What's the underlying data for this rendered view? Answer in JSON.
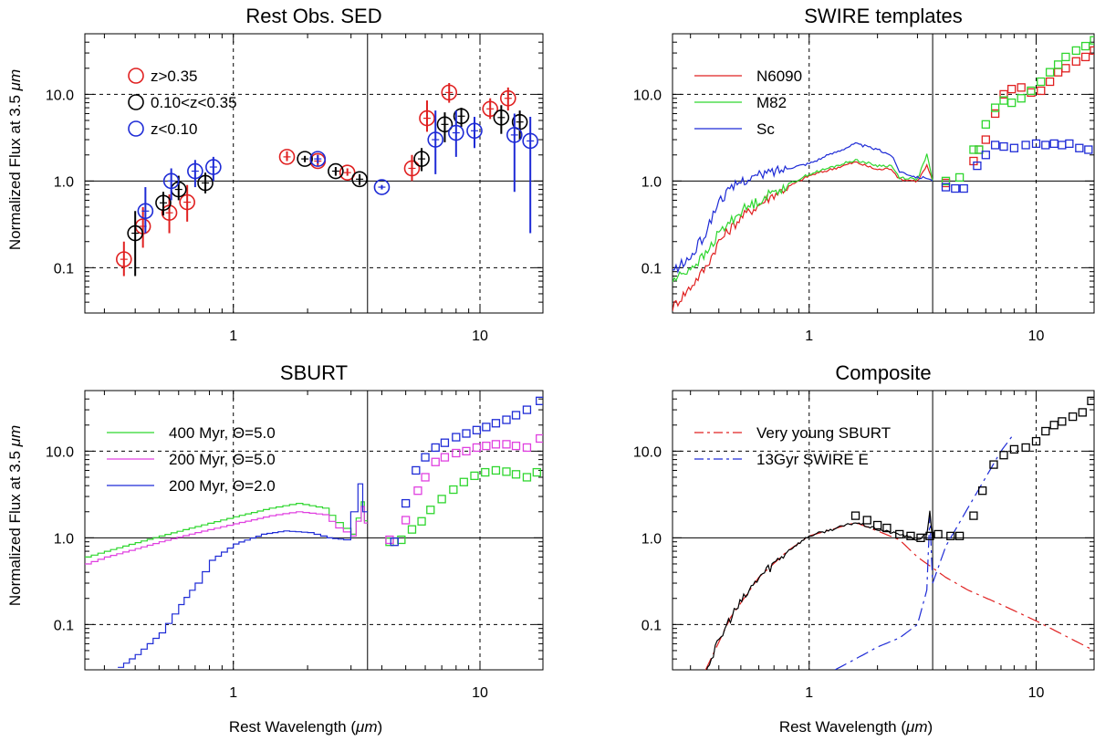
{
  "figure": {
    "ylabel_prefix": "Normalized Flux at 3.5 ",
    "ylabel_unit": "μm",
    "xlabel_prefix": "Rest Wavelength (",
    "xlabel_unit": "μm",
    "xlabel_suffix": ")"
  },
  "chart_data": [
    {
      "id": "rest-obs-sed",
      "type": "scatter",
      "title": "Rest Obs. SED",
      "xscale": "log",
      "yscale": "log",
      "xlim": [
        0.25,
        18
      ],
      "ylim": [
        0.03,
        50
      ],
      "xticks": [
        1,
        10
      ],
      "xtick_labels": [
        "1",
        "10"
      ],
      "yticks": [
        0.1,
        1,
        10
      ],
      "ytick_labels": [
        "0.1",
        "1.0",
        "10.0"
      ],
      "show_x_ticklabels": true,
      "show_y_ticklabels": true,
      "vlines_solid": [
        3.5
      ],
      "vlines_dashed": [
        1,
        10
      ],
      "hlines_solid": [
        1
      ],
      "hlines_dashed": [
        0.1,
        10
      ],
      "legend_position": "top-left",
      "series": [
        {
          "name": "z>0.35",
          "color": "#e02020",
          "marker": "circle",
          "x": [
            0.36,
            0.43,
            0.55,
            0.65,
            1.65,
            2.2,
            2.9,
            5.3,
            6.1,
            7.5,
            11.0,
            13.0
          ],
          "y": [
            0.125,
            0.3,
            0.43,
            0.57,
            1.9,
            1.7,
            1.25,
            1.4,
            5.3,
            10.5,
            6.8,
            9.0
          ],
          "err_lo": [
            0.08,
            0.17,
            0.25,
            0.34,
            1.7,
            1.5,
            1.15,
            1.0,
            3.7,
            8.0,
            5.2,
            6.5
          ],
          "err_hi": [
            0.2,
            0.5,
            0.7,
            0.9,
            2.2,
            2.0,
            1.4,
            2.0,
            8.5,
            13.5,
            9.0,
            12.0
          ]
        },
        {
          "name": "0.10<z<0.35",
          "color": "#000000",
          "marker": "circle",
          "x": [
            0.4,
            0.52,
            0.6,
            0.77,
            1.95,
            2.6,
            3.25,
            5.8,
            7.2,
            8.4,
            12.2,
            14.5
          ],
          "y": [
            0.25,
            0.56,
            0.8,
            0.95,
            1.8,
            1.3,
            1.05,
            1.8,
            4.5,
            5.6,
            5.4,
            4.8
          ],
          "err_lo": [
            0.08,
            0.4,
            0.6,
            0.72,
            1.65,
            1.15,
            0.9,
            1.3,
            2.8,
            4.2,
            3.5,
            3.0
          ],
          "err_hi": [
            0.45,
            0.75,
            1.15,
            1.25,
            1.95,
            1.45,
            1.2,
            2.4,
            6.2,
            7.0,
            7.5,
            6.5
          ],
          "markers_with_cross": true
        },
        {
          "name": "z<0.10",
          "color": "#1e2bd6",
          "marker": "circle",
          "x": [
            0.44,
            0.56,
            0.7,
            0.83,
            2.2,
            4.0,
            6.6,
            8.0,
            9.5,
            13.8,
            16.0
          ],
          "y": [
            0.45,
            1.0,
            1.3,
            1.45,
            1.8,
            0.85,
            3.0,
            3.6,
            3.8,
            3.4,
            2.9
          ],
          "err_lo": [
            0.25,
            0.6,
            0.85,
            1.0,
            1.6,
            0.8,
            1.2,
            1.9,
            2.4,
            0.75,
            0.25
          ],
          "err_hi": [
            0.85,
            1.4,
            1.75,
            1.9,
            2.0,
            0.9,
            6.5,
            6.5,
            5.5,
            6.0,
            5.5
          ]
        }
      ]
    },
    {
      "id": "swire-templates",
      "type": "line",
      "title": "SWIRE templates",
      "xscale": "log",
      "yscale": "log",
      "xlim": [
        0.25,
        18
      ],
      "ylim": [
        0.03,
        50
      ],
      "xticks": [
        1,
        10
      ],
      "xtick_labels": [
        "1",
        "10"
      ],
      "yticks": [
        0.1,
        1,
        10
      ],
      "ytick_labels": [
        "0.1",
        "1.0",
        "10.0"
      ],
      "show_x_ticklabels": true,
      "show_y_ticklabels": true,
      "vlines_solid": [
        3.5
      ],
      "vlines_dashed": [
        1,
        10
      ],
      "hlines_solid": [
        1
      ],
      "hlines_dashed": [
        0.1,
        10
      ],
      "legend_position": "top-left",
      "series": [
        {
          "name": "N6090",
          "color": "#e02020",
          "style": "solid",
          "line_x": [
            0.25,
            0.3,
            0.35,
            0.4,
            0.5,
            0.7,
            1.0,
            1.6,
            2.0,
            2.3,
            2.5,
            3.0,
            3.3,
            3.5
          ],
          "line_y": [
            0.035,
            0.06,
            0.1,
            0.2,
            0.38,
            0.7,
            1.15,
            1.65,
            1.35,
            1.4,
            1.05,
            1.0,
            1.5,
            1.0
          ],
          "sq_x": [
            4.0,
            5.3,
            5.6,
            6.0,
            6.6,
            7.2,
            7.8,
            8.6,
            9.5,
            10.5,
            11.5,
            12.5,
            13.5,
            15.0,
            16.5,
            18.0
          ],
          "sq_y": [
            0.95,
            1.7,
            2.3,
            3.0,
            6.0,
            10.0,
            11.5,
            12.0,
            10.5,
            11.0,
            14.0,
            18.0,
            20.0,
            24.0,
            27.0,
            32.0
          ]
        },
        {
          "name": "M82",
          "color": "#2ed62e",
          "style": "solid",
          "line_x": [
            0.25,
            0.3,
            0.35,
            0.4,
            0.5,
            0.7,
            1.0,
            1.6,
            2.0,
            2.3,
            2.5,
            3.0,
            3.3,
            3.5
          ],
          "line_y": [
            0.07,
            0.1,
            0.14,
            0.25,
            0.45,
            0.75,
            1.2,
            1.75,
            1.5,
            1.5,
            1.1,
            1.05,
            2.0,
            1.0
          ],
          "sq_x": [
            4.0,
            4.6,
            5.3,
            5.6,
            6.0,
            6.6,
            7.2,
            7.8,
            8.6,
            9.5,
            10.5,
            11.5,
            12.5,
            13.5,
            15.0,
            16.5,
            18.0
          ],
          "sq_y": [
            1.0,
            1.1,
            2.3,
            2.3,
            4.5,
            7.0,
            8.5,
            8.0,
            9.0,
            11.0,
            14.0,
            18.0,
            22.0,
            27.0,
            32.0,
            36.0,
            42.0
          ],
          "jagged": true
        },
        {
          "name": "Sc",
          "color": "#1e2bd6",
          "style": "solid",
          "line_x": [
            0.25,
            0.3,
            0.35,
            0.4,
            0.5,
            0.7,
            1.0,
            1.6,
            2.0,
            2.3,
            2.5,
            3.0,
            3.3,
            3.5
          ],
          "line_y": [
            0.09,
            0.13,
            0.25,
            0.6,
            1.0,
            1.3,
            1.6,
            2.7,
            2.3,
            2.0,
            1.3,
            1.1,
            1.1,
            1.0
          ],
          "sq_x": [
            4.0,
            4.4,
            4.8,
            5.5,
            6.0,
            6.6,
            7.2,
            8.0,
            9.0,
            10.0,
            11.0,
            12.0,
            13.0,
            14.0,
            15.5,
            17.0
          ],
          "sq_y": [
            0.85,
            0.82,
            0.82,
            1.5,
            2.0,
            2.6,
            2.5,
            2.4,
            2.6,
            2.7,
            2.6,
            2.7,
            2.6,
            2.7,
            2.4,
            2.3
          ]
        }
      ]
    },
    {
      "id": "sburt",
      "type": "line",
      "title": "SBURT",
      "xscale": "log",
      "yscale": "log",
      "xlim": [
        0.25,
        18
      ],
      "ylim": [
        0.03,
        50
      ],
      "xticks": [
        1,
        10
      ],
      "xtick_labels": [
        "1",
        "10"
      ],
      "yticks": [
        0.1,
        1,
        10
      ],
      "ytick_labels": [
        "0.1",
        "1.0",
        "10.0"
      ],
      "show_x_ticklabels": true,
      "show_y_ticklabels": true,
      "vlines_solid": [
        3.5
      ],
      "vlines_dashed": [
        1,
        10
      ],
      "hlines_solid": [
        1
      ],
      "hlines_dashed": [
        0.1,
        10
      ],
      "legend_position": "top-left",
      "series": [
        {
          "name": "400 Myr, Θ=5.0",
          "color": "#2ed62e",
          "style": "step",
          "line_x": [
            0.25,
            0.3,
            0.4,
            0.5,
            0.7,
            1.0,
            1.4,
            1.8,
            2.3,
            2.6,
            3.0,
            3.3,
            3.5
          ],
          "line_y": [
            0.6,
            0.7,
            0.88,
            1.05,
            1.35,
            1.75,
            2.2,
            2.5,
            2.2,
            1.5,
            1.1,
            2.6,
            0.95
          ],
          "sq_x": [
            4.3,
            4.8,
            5.3,
            5.8,
            6.3,
            7.0,
            7.8,
            8.6,
            9.5,
            10.5,
            11.6,
            12.8,
            14.0,
            15.5,
            17.0
          ],
          "sq_y": [
            0.9,
            0.95,
            1.25,
            1.55,
            2.1,
            2.8,
            3.6,
            4.4,
            5.2,
            5.7,
            6.0,
            5.8,
            5.4,
            5.0,
            5.7
          ]
        },
        {
          "name": "200 Myr, Θ=5.0",
          "color": "#e040e0",
          "style": "step",
          "line_x": [
            0.25,
            0.3,
            0.4,
            0.5,
            0.7,
            1.0,
            1.4,
            1.8,
            2.3,
            2.6,
            3.0,
            3.3,
            3.5
          ],
          "line_y": [
            0.5,
            0.6,
            0.75,
            0.9,
            1.15,
            1.45,
            1.8,
            2.0,
            1.85,
            1.3,
            1.05,
            2.3,
            0.95
          ],
          "sq_x": [
            4.3,
            5.0,
            5.6,
            6.0,
            6.6,
            7.2,
            8.0,
            8.8,
            9.7,
            10.6,
            11.6,
            12.8,
            14.0,
            15.5,
            17.5
          ],
          "sq_y": [
            0.95,
            1.6,
            3.5,
            5.0,
            7.5,
            8.5,
            9.5,
            10.0,
            11.0,
            11.5,
            12.0,
            12.0,
            11.5,
            11.0,
            14.0
          ]
        },
        {
          "name": "200 Myr, Θ=2.0",
          "color": "#1e2bd6",
          "style": "step",
          "line_x": [
            0.34,
            0.4,
            0.5,
            0.6,
            0.7,
            0.8,
            1.0,
            1.3,
            1.6,
            2.0,
            2.4,
            2.8,
            3.2,
            3.5
          ],
          "line_y": [
            0.032,
            0.045,
            0.08,
            0.17,
            0.3,
            0.55,
            0.85,
            1.1,
            1.2,
            1.15,
            1.0,
            0.95,
            4.2,
            0.95
          ],
          "sq_x": [
            4.5,
            5.0,
            5.5,
            6.0,
            6.6,
            7.2,
            8.0,
            8.8,
            9.7,
            10.6,
            11.6,
            12.8,
            14.0,
            15.5,
            17.5
          ],
          "sq_y": [
            0.9,
            2.5,
            6.0,
            8.5,
            11.0,
            12.5,
            14.5,
            16.0,
            17.5,
            19.0,
            21.0,
            23.0,
            26.0,
            30.0,
            38.0
          ]
        }
      ]
    },
    {
      "id": "composite",
      "type": "line",
      "title": "Composite",
      "xscale": "log",
      "yscale": "log",
      "xlim": [
        0.25,
        18
      ],
      "ylim": [
        0.03,
        50
      ],
      "xticks": [
        1,
        10
      ],
      "xtick_labels": [
        "1",
        "10"
      ],
      "yticks": [
        0.1,
        1,
        10
      ],
      "ytick_labels": [
        "0.1",
        "1.0",
        "10.0"
      ],
      "show_x_ticklabels": true,
      "show_y_ticklabels": true,
      "vlines_solid": [
        3.5
      ],
      "vlines_dashed": [
        1,
        10
      ],
      "hlines_solid": [
        1
      ],
      "hlines_dashed": [
        0.1,
        10
      ],
      "legend_position": "top-left",
      "series": [
        {
          "name": "Very young SBURT",
          "color": "#e02020",
          "style": "dashdot",
          "line_x": [
            0.35,
            0.45,
            0.6,
            0.8,
            1.0,
            1.6,
            2.0,
            2.5,
            3.0,
            4.0,
            5.0,
            7.0,
            10.0,
            14.0,
            18.0
          ],
          "line_y": [
            0.03,
            0.12,
            0.35,
            0.7,
            1.05,
            1.5,
            1.2,
            0.95,
            0.6,
            0.35,
            0.25,
            0.17,
            0.11,
            0.07,
            0.05
          ]
        },
        {
          "name": "13Gyr SWIRE E",
          "color": "#1e2bd6",
          "style": "dashdot",
          "line_x": [
            1.3,
            1.6,
            2.0,
            2.5,
            3.0,
            3.3,
            3.4,
            3.5,
            4.0,
            5.0,
            6.0,
            7.0,
            8.0
          ],
          "line_y": [
            0.03,
            0.04,
            0.055,
            0.07,
            0.1,
            0.25,
            1.8,
            0.3,
            0.8,
            2.2,
            5.0,
            10.0,
            16.0
          ]
        },
        {
          "name": "composite-total",
          "color": "#000000",
          "style": "solid",
          "hidden_legend": true,
          "line_x": [
            0.35,
            0.45,
            0.6,
            0.8,
            1.0,
            1.6,
            2.0,
            2.5,
            3.0,
            3.3,
            3.4,
            3.5
          ],
          "line_y": [
            0.03,
            0.12,
            0.35,
            0.7,
            1.05,
            1.5,
            1.25,
            1.1,
            0.95,
            1.1,
            2.0,
            0.95
          ],
          "sq_x": [
            1.6,
            1.8,
            2.0,
            2.2,
            2.5,
            2.8,
            3.1,
            3.4,
            3.7,
            4.2,
            4.6,
            5.3,
            5.8,
            6.5,
            7.2,
            8.0,
            9.0,
            10.0,
            11.0,
            12.0,
            13.0,
            14.5,
            16.0,
            17.5
          ],
          "sq_y": [
            1.8,
            1.6,
            1.4,
            1.3,
            1.1,
            1.05,
            1.0,
            1.05,
            1.1,
            1.05,
            1.05,
            1.8,
            3.5,
            7.0,
            9.0,
            10.5,
            11.0,
            13.0,
            17.0,
            20.0,
            22.0,
            25.0,
            28.0,
            38.0
          ]
        }
      ]
    }
  ]
}
